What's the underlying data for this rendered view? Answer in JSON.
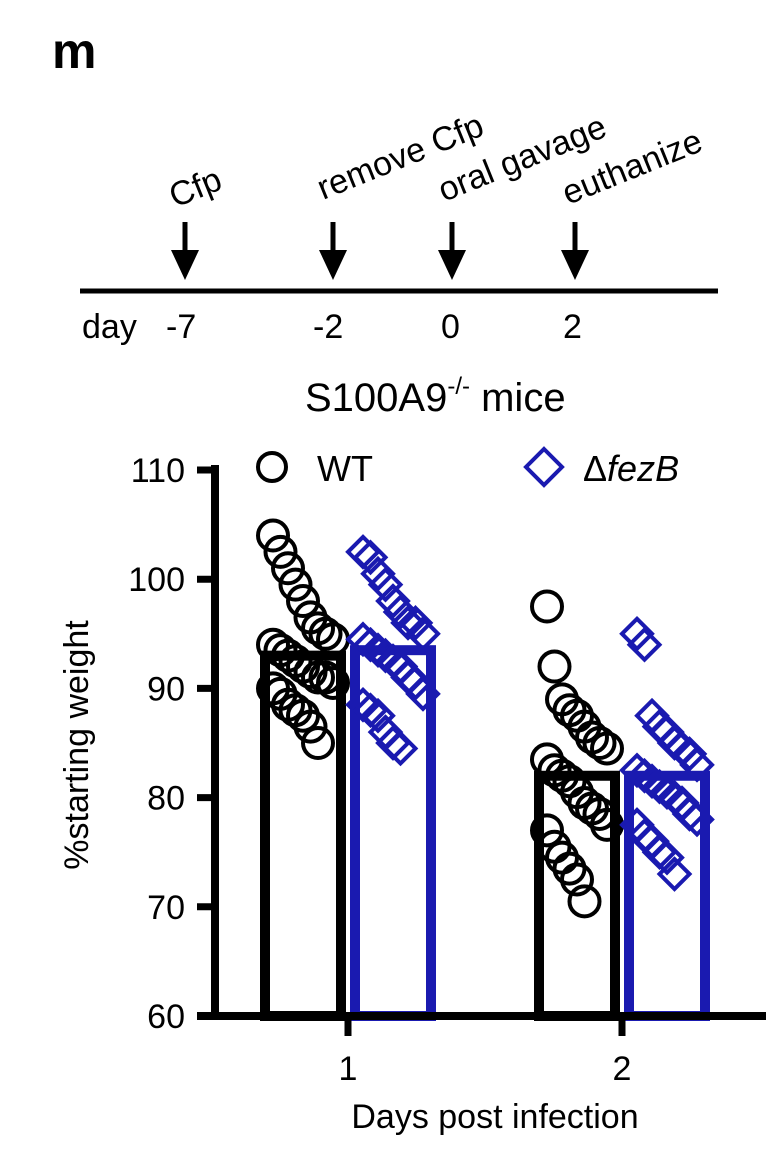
{
  "panel_letter": "m",
  "timeline": {
    "events": [
      {
        "day": "-7",
        "label": "Cfp"
      },
      {
        "day": "-2",
        "label": "remove Cfp"
      },
      {
        "day": "0",
        "label": "oral gavage"
      },
      {
        "day": "2",
        "label": "euthanize"
      }
    ],
    "day_prefix": "day",
    "caption_main": "S100A9",
    "caption_sup": "-/-",
    "caption_tail": " mice"
  },
  "chart_data": {
    "type": "bar",
    "title": "S100A9-/- mice",
    "xlabel": "Days post infection",
    "ylabel": "%starting weight",
    "categories": [
      "1",
      "2"
    ],
    "ylim": [
      60,
      110
    ],
    "yticks": [
      60,
      70,
      80,
      90,
      100,
      110
    ],
    "legend_position": "top",
    "series": [
      {
        "name": "WT",
        "name_prefix": "",
        "name_italic": "",
        "marker": "circle",
        "color": "#000000",
        "values": [
          93.0,
          82.0
        ],
        "points": [
          [
            104.0,
            102.5,
            101.0,
            99.5,
            98.0,
            96.5,
            95.5,
            95.0,
            94.5,
            94.0,
            93.5,
            93.0,
            92.5,
            92.0,
            91.5,
            91.0,
            91.0,
            90.5,
            90.0,
            89.5,
            88.5,
            88.0,
            87.5,
            86.5,
            85.0
          ],
          [
            97.5,
            92.0,
            89.0,
            88.0,
            87.5,
            86.5,
            85.5,
            85.0,
            84.5,
            83.5,
            82.5,
            82.0,
            81.5,
            80.5,
            79.5,
            79.0,
            78.5,
            77.5,
            77.0,
            75.5,
            74.5,
            73.5,
            72.5,
            70.5
          ]
        ]
      },
      {
        "name": "ΔfezB",
        "name_prefix": "Δ",
        "name_italic": "fezB",
        "marker": "diamond",
        "color": "#1a1ab0",
        "values": [
          93.5,
          82.0
        ],
        "points": [
          [
            102.5,
            102.0,
            100.5,
            99.5,
            98.0,
            97.0,
            96.0,
            96.0,
            95.0,
            94.5,
            94.0,
            93.5,
            93.0,
            92.5,
            92.0,
            91.0,
            90.5,
            89.5,
            88.5,
            88.0,
            87.5,
            86.0,
            85.0,
            84.5
          ],
          [
            95.0,
            94.0,
            87.5,
            86.5,
            86.0,
            85.0,
            84.5,
            84.0,
            83.0,
            82.5,
            82.0,
            81.5,
            81.0,
            80.5,
            80.0,
            79.5,
            78.5,
            78.0,
            77.5,
            76.5,
            76.0,
            75.0,
            74.5,
            73.0
          ]
        ]
      }
    ]
  }
}
